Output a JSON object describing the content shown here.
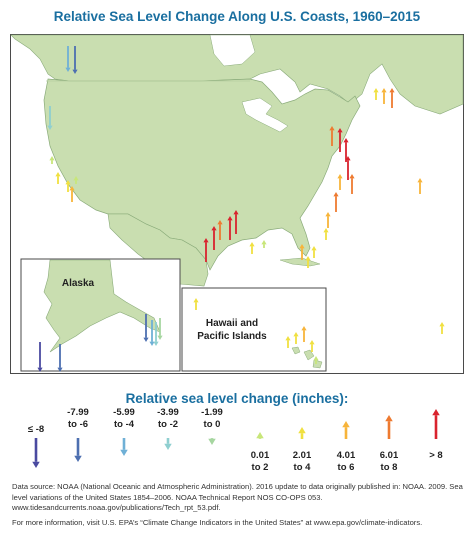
{
  "title": "Relative Sea Level Change Along U.S. Coasts, 1960–2015",
  "map": {
    "insets": {
      "alaska": "Alaska",
      "hawaii_line1": "Hawaii and",
      "hawaii_line2": "Pacific Islands"
    },
    "colors": {
      "ocean": "#ffffff",
      "land": "#c9deb0",
      "land_stroke": "#8aab7a",
      "border": "#b7cfa0",
      "frame": "#4a4a4a"
    }
  },
  "legend": {
    "title": "Relative sea level change (inches):",
    "categories": [
      {
        "line1": "≤ -8",
        "line2": "",
        "color": "#4a4aa0",
        "direction": "down"
      },
      {
        "line1": "-7.99",
        "line2": "to -6",
        "color": "#4d6fb0",
        "direction": "down"
      },
      {
        "line1": "-5.99",
        "line2": "to -4",
        "color": "#6fb0d6",
        "direction": "down"
      },
      {
        "line1": "-3.99",
        "line2": "to -2",
        "color": "#8fcfd0",
        "direction": "down"
      },
      {
        "line1": "-1.99",
        "line2": "to 0",
        "color": "#a6d6a0",
        "direction": "down"
      },
      {
        "line1": "0.01",
        "line2": "to 2",
        "color": "#c8e67a",
        "direction": "up"
      },
      {
        "line1": "2.01",
        "line2": "to 4",
        "color": "#f0e040",
        "direction": "up"
      },
      {
        "line1": "4.01",
        "line2": "to 6",
        "color": "#f7b43a",
        "direction": "up"
      },
      {
        "line1": "6.01",
        "line2": "to 8",
        "color": "#ee7a30",
        "direction": "up"
      },
      {
        "line1": "> 8",
        "line2": "",
        "color": "#d9232e",
        "direction": "up"
      }
    ]
  },
  "source": {
    "line1": "Data source: NOAA (National Oceanic and Atmospheric Administration). 2016 update to data originally published in: NOAA. 2009. Sea level variations of the United States 1854–2006. NOAA Technical Report NOS CO-OPS 053. www.tidesandcurrents.noaa.gov/publications/Tech_rpt_53.pdf.",
    "line2": "For more information, visit U.S. EPA’s “Climate Change Indicators in the United States” at www.epa.gov/climate-indicators."
  }
}
